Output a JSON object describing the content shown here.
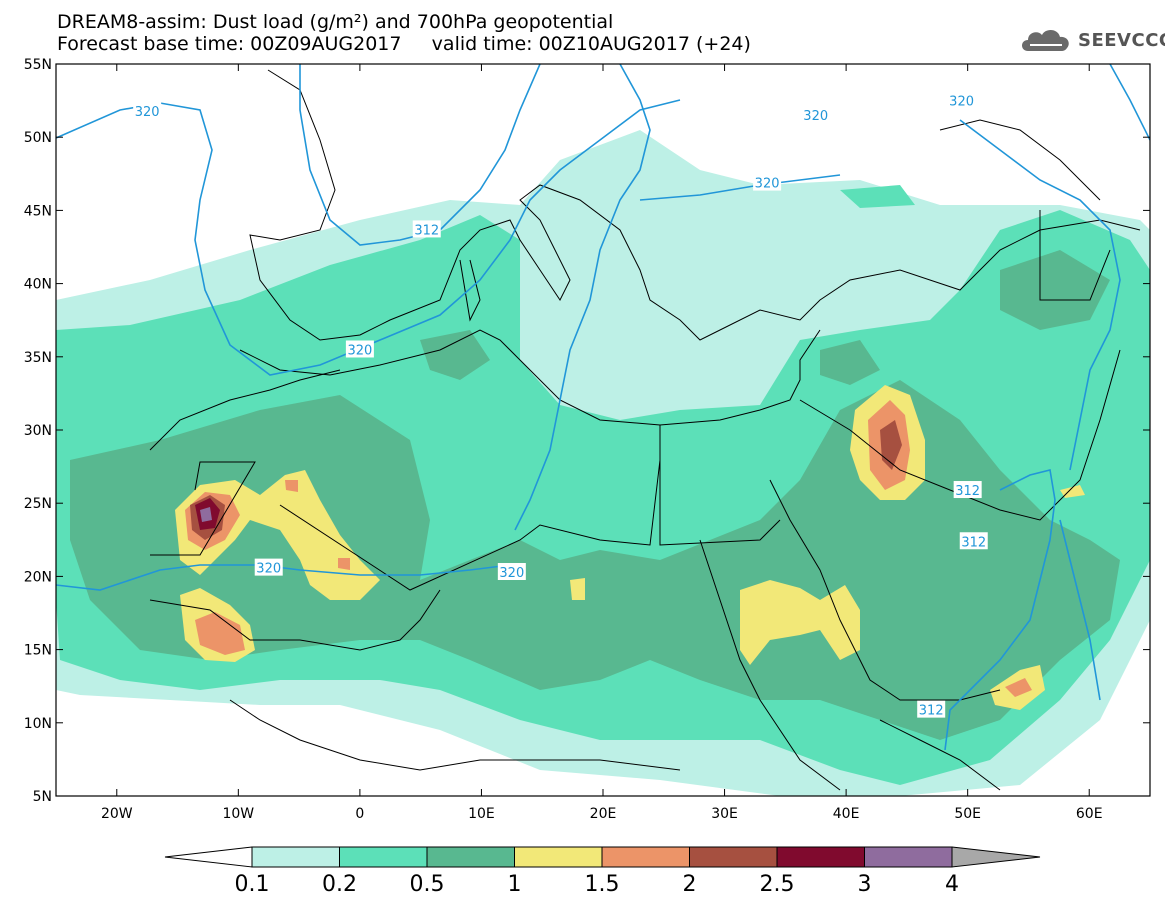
{
  "title": {
    "line1": "DREAM8-assim: Dust load (g/m²) and 700hPa geopotential",
    "line2": "Forecast base time: 00Z09AUG2017     valid time: 00Z10AUG2017 (+24)"
  },
  "logo": {
    "text": "SEEVCCC",
    "icon": "cloud-icon"
  },
  "axes": {
    "lon_range": [
      -25,
      65
    ],
    "lat_range": [
      5,
      55
    ],
    "lon_ticks": [
      {
        "value": -20,
        "label": "20W"
      },
      {
        "value": -10,
        "label": "10W"
      },
      {
        "value": 0,
        "label": "0"
      },
      {
        "value": 10,
        "label": "10E"
      },
      {
        "value": 20,
        "label": "20E"
      },
      {
        "value": 30,
        "label": "30E"
      },
      {
        "value": 40,
        "label": "40E"
      },
      {
        "value": 50,
        "label": "50E"
      },
      {
        "value": 60,
        "label": "60E"
      }
    ],
    "lat_ticks": [
      {
        "value": 5,
        "label": "5N"
      },
      {
        "value": 10,
        "label": "10N"
      },
      {
        "value": 15,
        "label": "15N"
      },
      {
        "value": 20,
        "label": "20N"
      },
      {
        "value": 25,
        "label": "25N"
      },
      {
        "value": 30,
        "label": "30N"
      },
      {
        "value": 35,
        "label": "35N"
      },
      {
        "value": 40,
        "label": "40N"
      },
      {
        "value": 45,
        "label": "45N"
      },
      {
        "value": 50,
        "label": "50N"
      },
      {
        "value": 55,
        "label": "55N"
      }
    ]
  },
  "colorbar": {
    "under_color": "#ffffff",
    "over_color": "#a8a8a8",
    "bins": [
      {
        "color": "#bdf0e6"
      },
      {
        "color": "#5ce0b8"
      },
      {
        "color": "#58b890"
      },
      {
        "color": "#f2e878"
      },
      {
        "color": "#ec9468"
      },
      {
        "color": "#a65040"
      },
      {
        "color": "#800a2e"
      },
      {
        "color": "#8f6c9e"
      }
    ],
    "labels": [
      "0.1",
      "0.2",
      "0.5",
      "1",
      "1.5",
      "2",
      "2.5",
      "3",
      "4"
    ]
  },
  "geopotential_labels": [
    {
      "text": "320",
      "lon": -17.5,
      "lat": 51.8
    },
    {
      "text": "312",
      "lon": 5.5,
      "lat": 43.7
    },
    {
      "text": "320",
      "lon": 33.5,
      "lat": 46.9
    },
    {
      "text": "320",
      "lon": 49.5,
      "lat": 52.5
    },
    {
      "text": "320",
      "lon": 37.5,
      "lat": 51.5
    },
    {
      "text": "320",
      "lon": 0.0,
      "lat": 35.5
    },
    {
      "text": "320",
      "lon": -7.5,
      "lat": 20.6
    },
    {
      "text": "320",
      "lon": 12.5,
      "lat": 20.3
    },
    {
      "text": "312",
      "lon": 50.0,
      "lat": 25.9
    },
    {
      "text": "312",
      "lon": 50.5,
      "lat": 22.4
    },
    {
      "text": "312",
      "lon": 47.0,
      "lat": 10.9
    }
  ],
  "colors": {
    "contour": "#2196d8",
    "border": "#000000"
  }
}
